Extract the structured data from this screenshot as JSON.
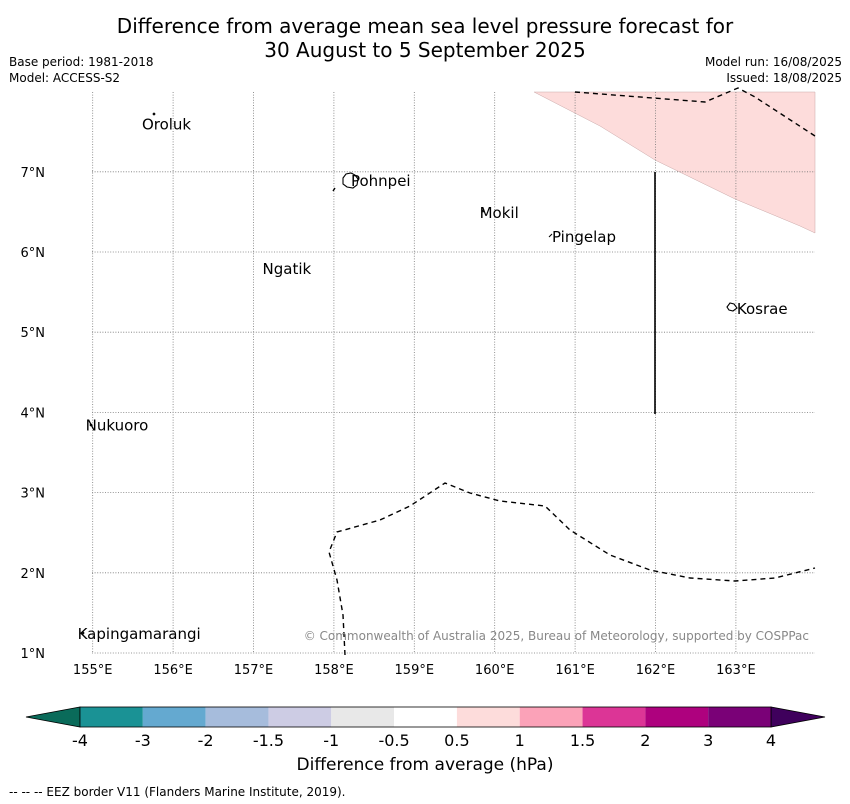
{
  "title": {
    "line1": "Difference from average mean sea level pressure forecast for",
    "line2": "30 August to 5 September 2025"
  },
  "meta": {
    "base_period": "Base period: 1981-2018",
    "model": "Model: ACCESS-S2",
    "model_run": "Model run: 16/08/2025",
    "issued": "Issued: 18/08/2025"
  },
  "map": {
    "lon_range": [
      154.5,
      164.0
    ],
    "lat_range": [
      1.0,
      8.0
    ],
    "lon_ticks": [
      "155°E",
      "156°E",
      "157°E",
      "158°E",
      "159°E",
      "160°E",
      "161°E",
      "162°E",
      "163°E"
    ],
    "lat_ticks": [
      "1°N",
      "2°N",
      "3°N",
      "4°N",
      "5°N",
      "6°N",
      "7°N"
    ],
    "islands": [
      {
        "name": "Oroluk",
        "lon": 155.6,
        "lat": 7.6
      },
      {
        "name": "Pohnpei",
        "lon": 158.2,
        "lat": 6.9
      },
      {
        "name": "Mokil",
        "lon": 159.8,
        "lat": 6.5
      },
      {
        "name": "Pingelap",
        "lon": 160.7,
        "lat": 6.2
      },
      {
        "name": "Ngatik",
        "lon": 157.1,
        "lat": 5.8
      },
      {
        "name": "Kosrae",
        "lon": 163.0,
        "lat": 5.3
      },
      {
        "name": "Nukuoro",
        "lon": 154.9,
        "lat": 3.85
      },
      {
        "name": "Kapingamarangi",
        "lon": 154.8,
        "lat": 1.25
      }
    ],
    "anomaly_region_color": "#fddcdb",
    "copyright": "© Commonwealth of Australia 2025, Bureau of Meteorology, supported by COSPPac"
  },
  "colorbar": {
    "label": "Difference from average (hPa)",
    "tick_labels": [
      "-4",
      "-3",
      "-2",
      "-1.5",
      "-1",
      "-0.5",
      "0.5",
      "1",
      "1.5",
      "2",
      "3",
      "4"
    ],
    "under_color": "#0a6b5a",
    "over_color": "#3f005c",
    "colors": [
      "#1a9295",
      "#64a9d0",
      "#a6bcdc",
      "#cdcce4",
      "#e8e8e8",
      "#ffffff",
      "#fddcdb",
      "#fba2b8",
      "#dc3596",
      "#ae017e",
      "#7a0177"
    ]
  },
  "footer": {
    "eez_note": "--  --  -- EEZ border V11 (Flanders Marine Institute, 2019)."
  }
}
